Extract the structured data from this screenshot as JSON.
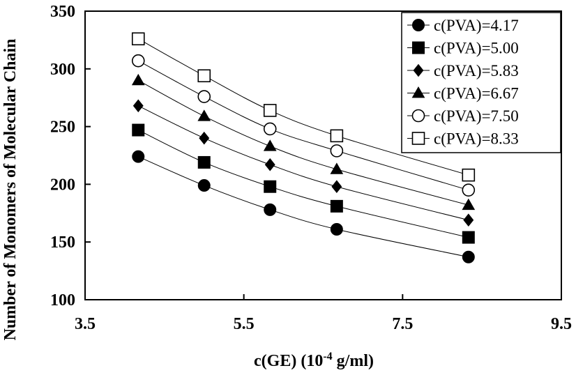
{
  "chart_data": {
    "type": "line",
    "xlabel": "c(GE) (10",
    "xlabel_exp": "-4",
    "xlabel_unit": " g/ml)",
    "ylabel": "Number of Monomers of Molecular Chain",
    "xlim": [
      3.5,
      9.5
    ],
    "ylim": [
      100,
      350
    ],
    "x_ticks": [
      "3.5",
      "5.5",
      "7.5",
      "9.5"
    ],
    "y_ticks": [
      "100",
      "150",
      "200",
      "250",
      "300",
      "350"
    ],
    "grid": false,
    "legend_position": "top-right",
    "x": [
      4.17,
      5.0,
      5.83,
      6.67,
      8.33
    ],
    "series": [
      {
        "name": "c(PVA)=4.17",
        "marker": "circle-filled",
        "values": [
          224,
          199,
          178,
          161,
          137
        ]
      },
      {
        "name": "c(PVA)=5.00",
        "marker": "square-filled",
        "values": [
          247,
          219,
          198,
          181,
          154
        ]
      },
      {
        "name": "c(PVA)=5.83",
        "marker": "diamond-filled",
        "values": [
          268,
          240,
          217,
          198,
          169
        ]
      },
      {
        "name": "c(PVA)=6.67",
        "marker": "triangle-filled",
        "values": [
          290,
          259,
          233,
          213,
          182
        ]
      },
      {
        "name": "c(PVA)=7.50",
        "marker": "circle-open",
        "values": [
          307,
          276,
          248,
          229,
          195
        ]
      },
      {
        "name": "c(PVA)=8.33",
        "marker": "square-open",
        "values": [
          326,
          294,
          264,
          242,
          208
        ]
      }
    ]
  }
}
